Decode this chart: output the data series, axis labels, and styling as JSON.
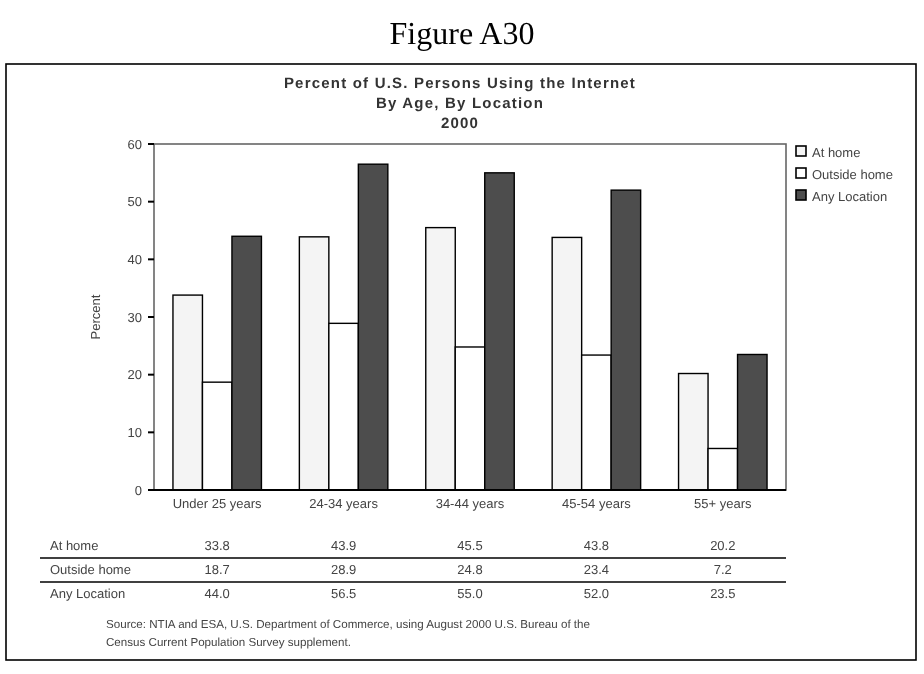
{
  "chart_data": {
    "type": "bar",
    "title": "Figure A30",
    "subtitle": "Percent of U.S. Persons Using the Internet\nBy Age, By Location\n2000",
    "ylabel": "Percent",
    "categories": [
      "Under 25 years",
      "24-34 years",
      "34-44 years",
      "45-54 years",
      "55+ years"
    ],
    "series": [
      {
        "name": "At home",
        "color": "#f4f4f4",
        "values": [
          33.8,
          43.9,
          45.5,
          43.8,
          20.2
        ],
        "value_labels": [
          "33.8",
          "43.9",
          "45.5",
          "43.8",
          "20.2"
        ]
      },
      {
        "name": "Outside home",
        "color": "#ffffff",
        "values": [
          18.7,
          28.9,
          24.8,
          23.4,
          7.2
        ],
        "value_labels": [
          "18.7",
          "28.9",
          "24.8",
          "23.4",
          "7.2"
        ]
      },
      {
        "name": "Any Location",
        "color": "#4d4d4d",
        "values": [
          44.0,
          56.5,
          55.0,
          52.0,
          23.5
        ],
        "value_labels": [
          "44.0",
          "56.5",
          "55.0",
          "52.0",
          "23.5"
        ]
      }
    ],
    "ylim": [
      0,
      60
    ],
    "yticks": [
      0,
      10,
      20,
      30,
      40,
      50,
      60
    ],
    "grid": false,
    "legend": "right",
    "annotations": [
      "Source: NTIA and ESA, U.S. Department of Commerce, using August 2000 U.S. Bureau of the\nCensus Current Population Survey supplement."
    ]
  }
}
